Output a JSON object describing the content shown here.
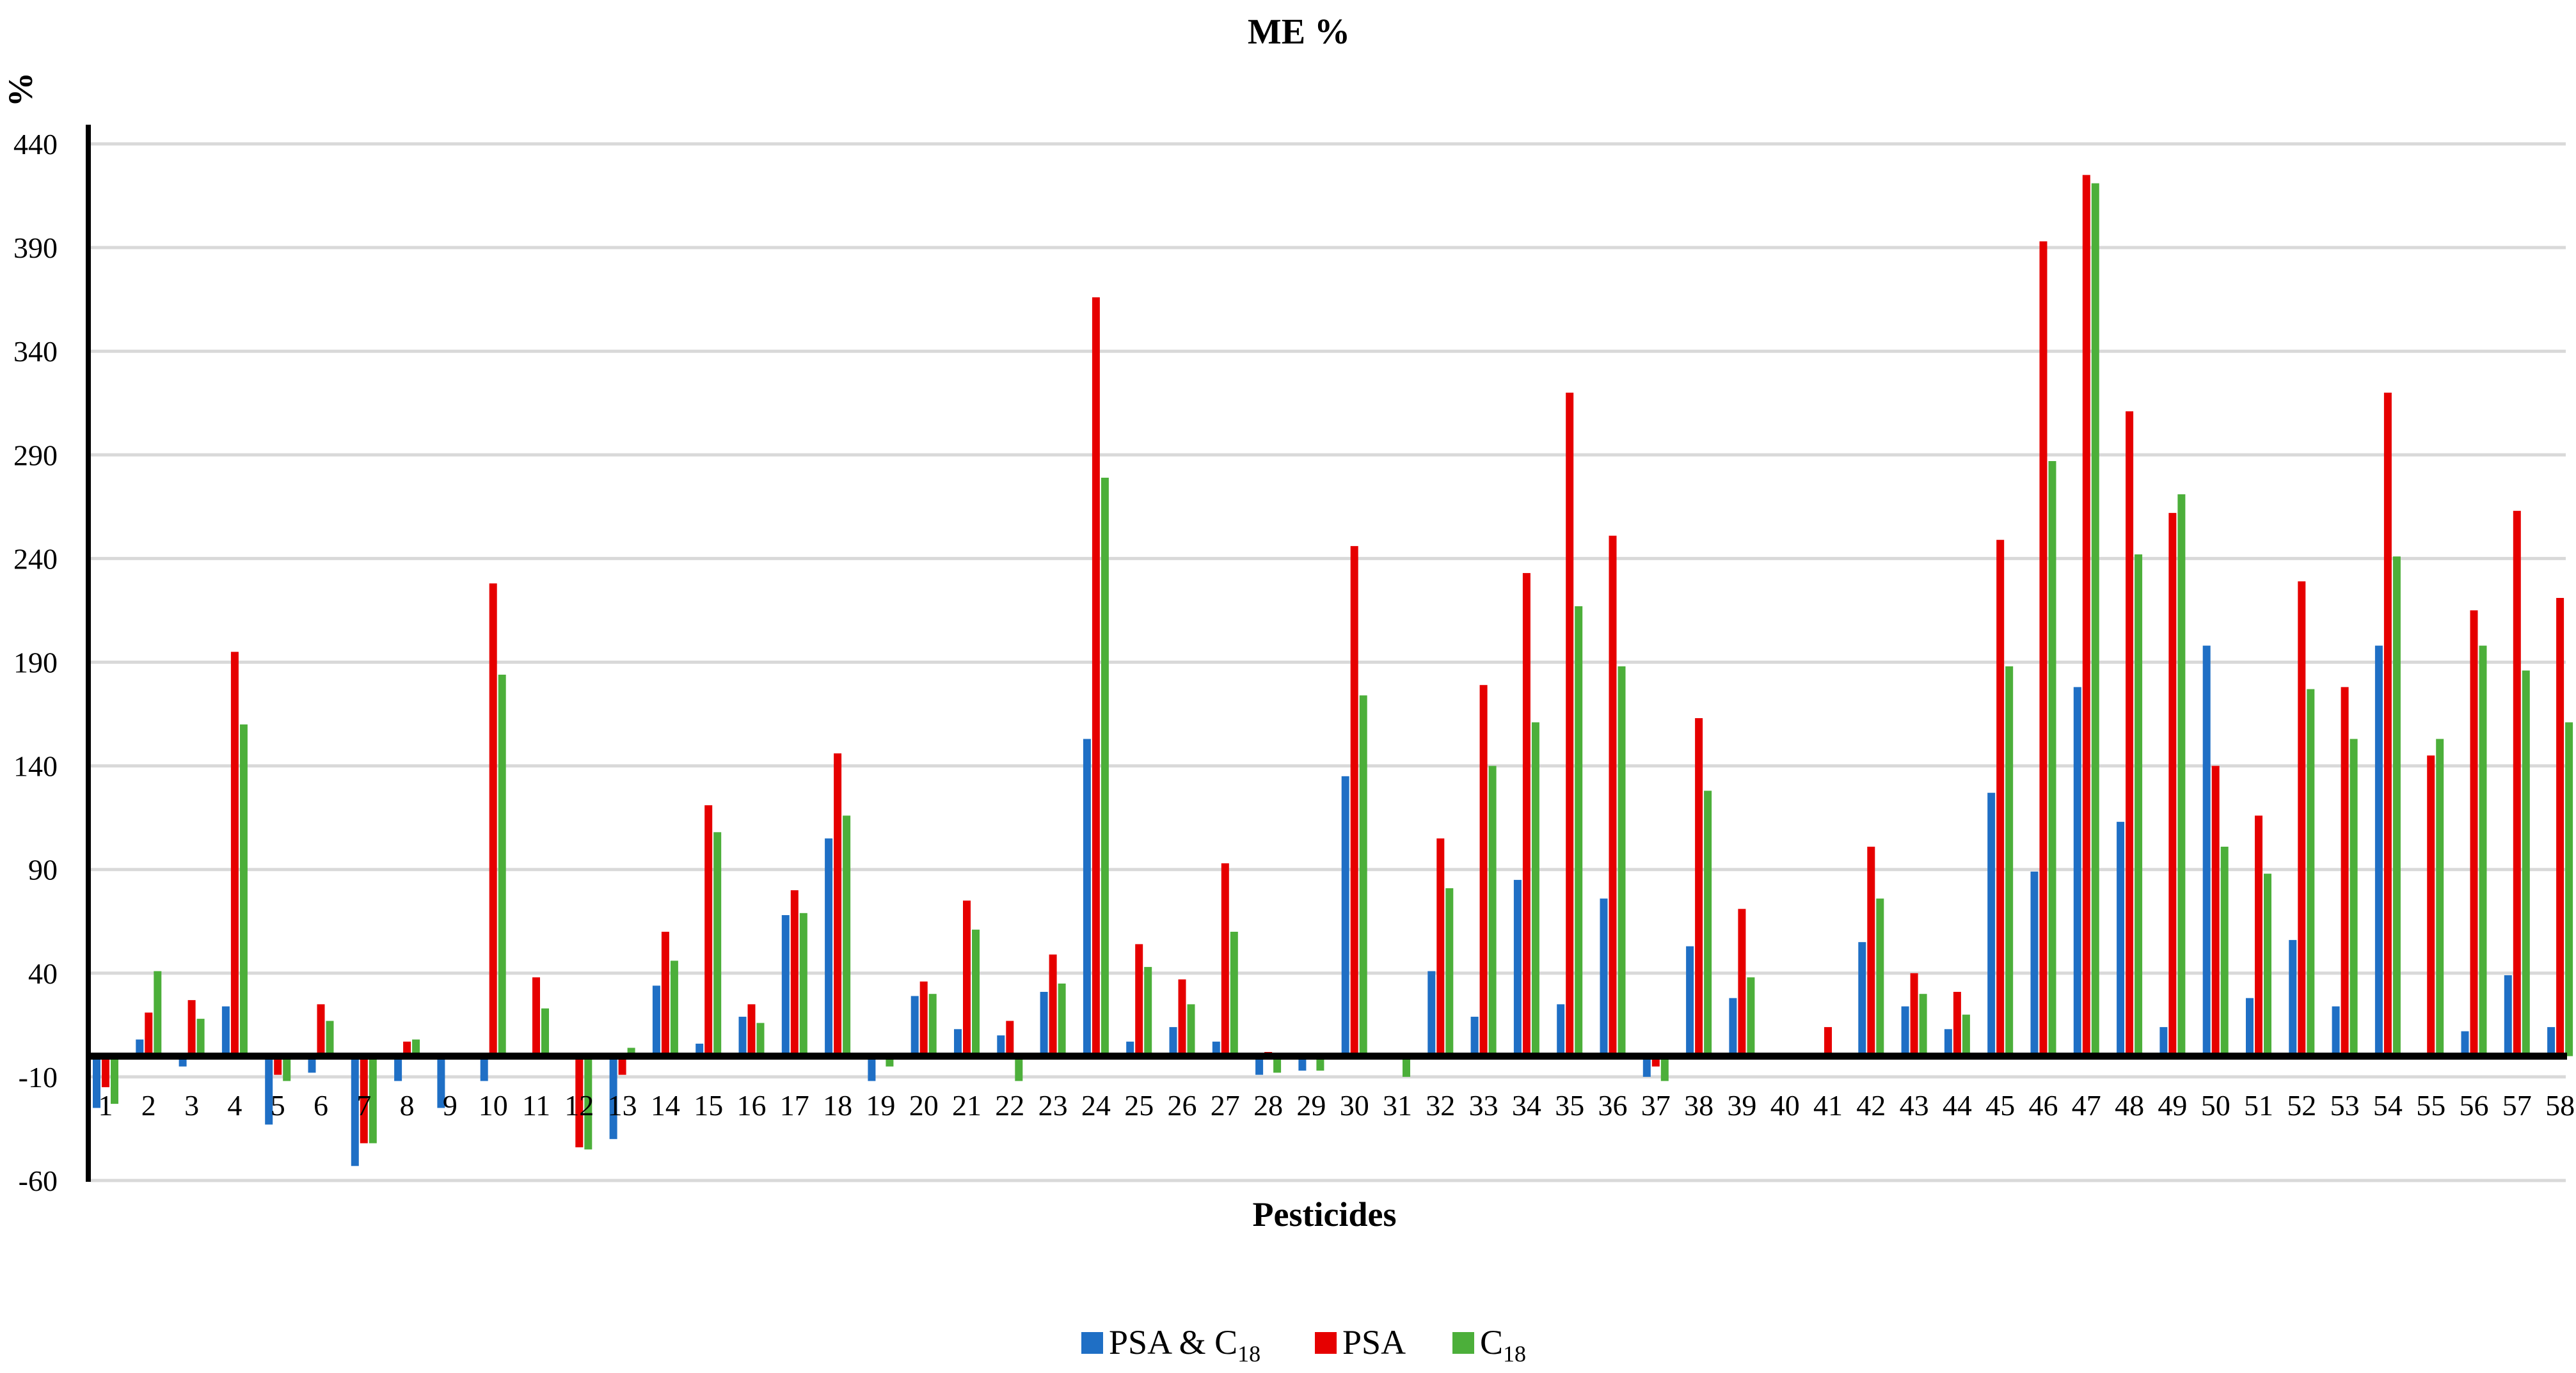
{
  "chart_data": {
    "type": "bar",
    "title": "ME %",
    "xlabel": "Pesticides",
    "ylabel": "%",
    "ylim": [
      -60,
      440
    ],
    "yticks": [
      440,
      390,
      340,
      290,
      240,
      190,
      140,
      90,
      40,
      -10,
      -60
    ],
    "grid": true,
    "legend_position": "bottom",
    "categories": [
      "1",
      "2",
      "3",
      "4",
      "5",
      "6",
      "7",
      "8",
      "9",
      "10",
      "11",
      "12",
      "13",
      "14",
      "15",
      "16",
      "17",
      "18",
      "19",
      "20",
      "21",
      "22",
      "23",
      "24",
      "25",
      "26",
      "27",
      "28",
      "29",
      "30",
      "31",
      "32",
      "33",
      "34",
      "35",
      "36",
      "37",
      "38",
      "39",
      "40",
      "41",
      "42",
      "43",
      "44",
      "45",
      "46",
      "47",
      "48",
      "49",
      "50",
      "51",
      "52",
      "53",
      "54",
      "55",
      "56",
      "57",
      "58"
    ],
    "series": [
      {
        "name": "PSA & C18",
        "name_main": "PSA & C",
        "name_sub": "18",
        "color": "#1f6fc5",
        "values": [
          -25,
          8,
          -5,
          24,
          -33,
          -8,
          -53,
          -12,
          -25,
          -12,
          0,
          0,
          -40,
          34,
          6,
          19,
          68,
          105,
          -12,
          29,
          13,
          10,
          31,
          153,
          7,
          14,
          7,
          -9,
          -7,
          135,
          0,
          41,
          19,
          85,
          25,
          76,
          -10,
          53,
          28,
          0,
          0,
          55,
          24,
          13,
          127,
          89,
          178,
          113,
          14,
          198,
          28,
          56,
          24,
          198,
          1,
          12,
          39,
          14
        ]
      },
      {
        "name": "PSA",
        "name_main": "PSA",
        "name_sub": "",
        "color": "#e60000",
        "values": [
          -15,
          21,
          27,
          195,
          -9,
          25,
          -42,
          7,
          0,
          228,
          38,
          -44,
          -9,
          60,
          121,
          25,
          80,
          146,
          0,
          36,
          75,
          17,
          49,
          366,
          54,
          37,
          93,
          2,
          0,
          246,
          0,
          105,
          179,
          233,
          320,
          251,
          -5,
          163,
          71,
          0,
          14,
          101,
          40,
          31,
          249,
          393,
          425,
          311,
          262,
          140,
          116,
          229,
          178,
          320,
          145,
          215,
          263,
          221
        ]
      },
      {
        "name": "C18",
        "name_main": "C",
        "name_sub": "18",
        "color": "#4caf3a",
        "values": [
          -23,
          41,
          18,
          160,
          -12,
          17,
          -42,
          8,
          0,
          184,
          23,
          -45,
          4,
          46,
          108,
          16,
          69,
          116,
          -5,
          30,
          61,
          -12,
          35,
          279,
          43,
          25,
          60,
          -8,
          -7,
          174,
          -10,
          81,
          140,
          161,
          217,
          188,
          -12,
          128,
          38,
          0,
          0,
          76,
          30,
          20,
          188,
          287,
          421,
          242,
          271,
          101,
          88,
          177,
          153,
          241,
          153,
          198,
          186,
          161
        ]
      }
    ]
  }
}
